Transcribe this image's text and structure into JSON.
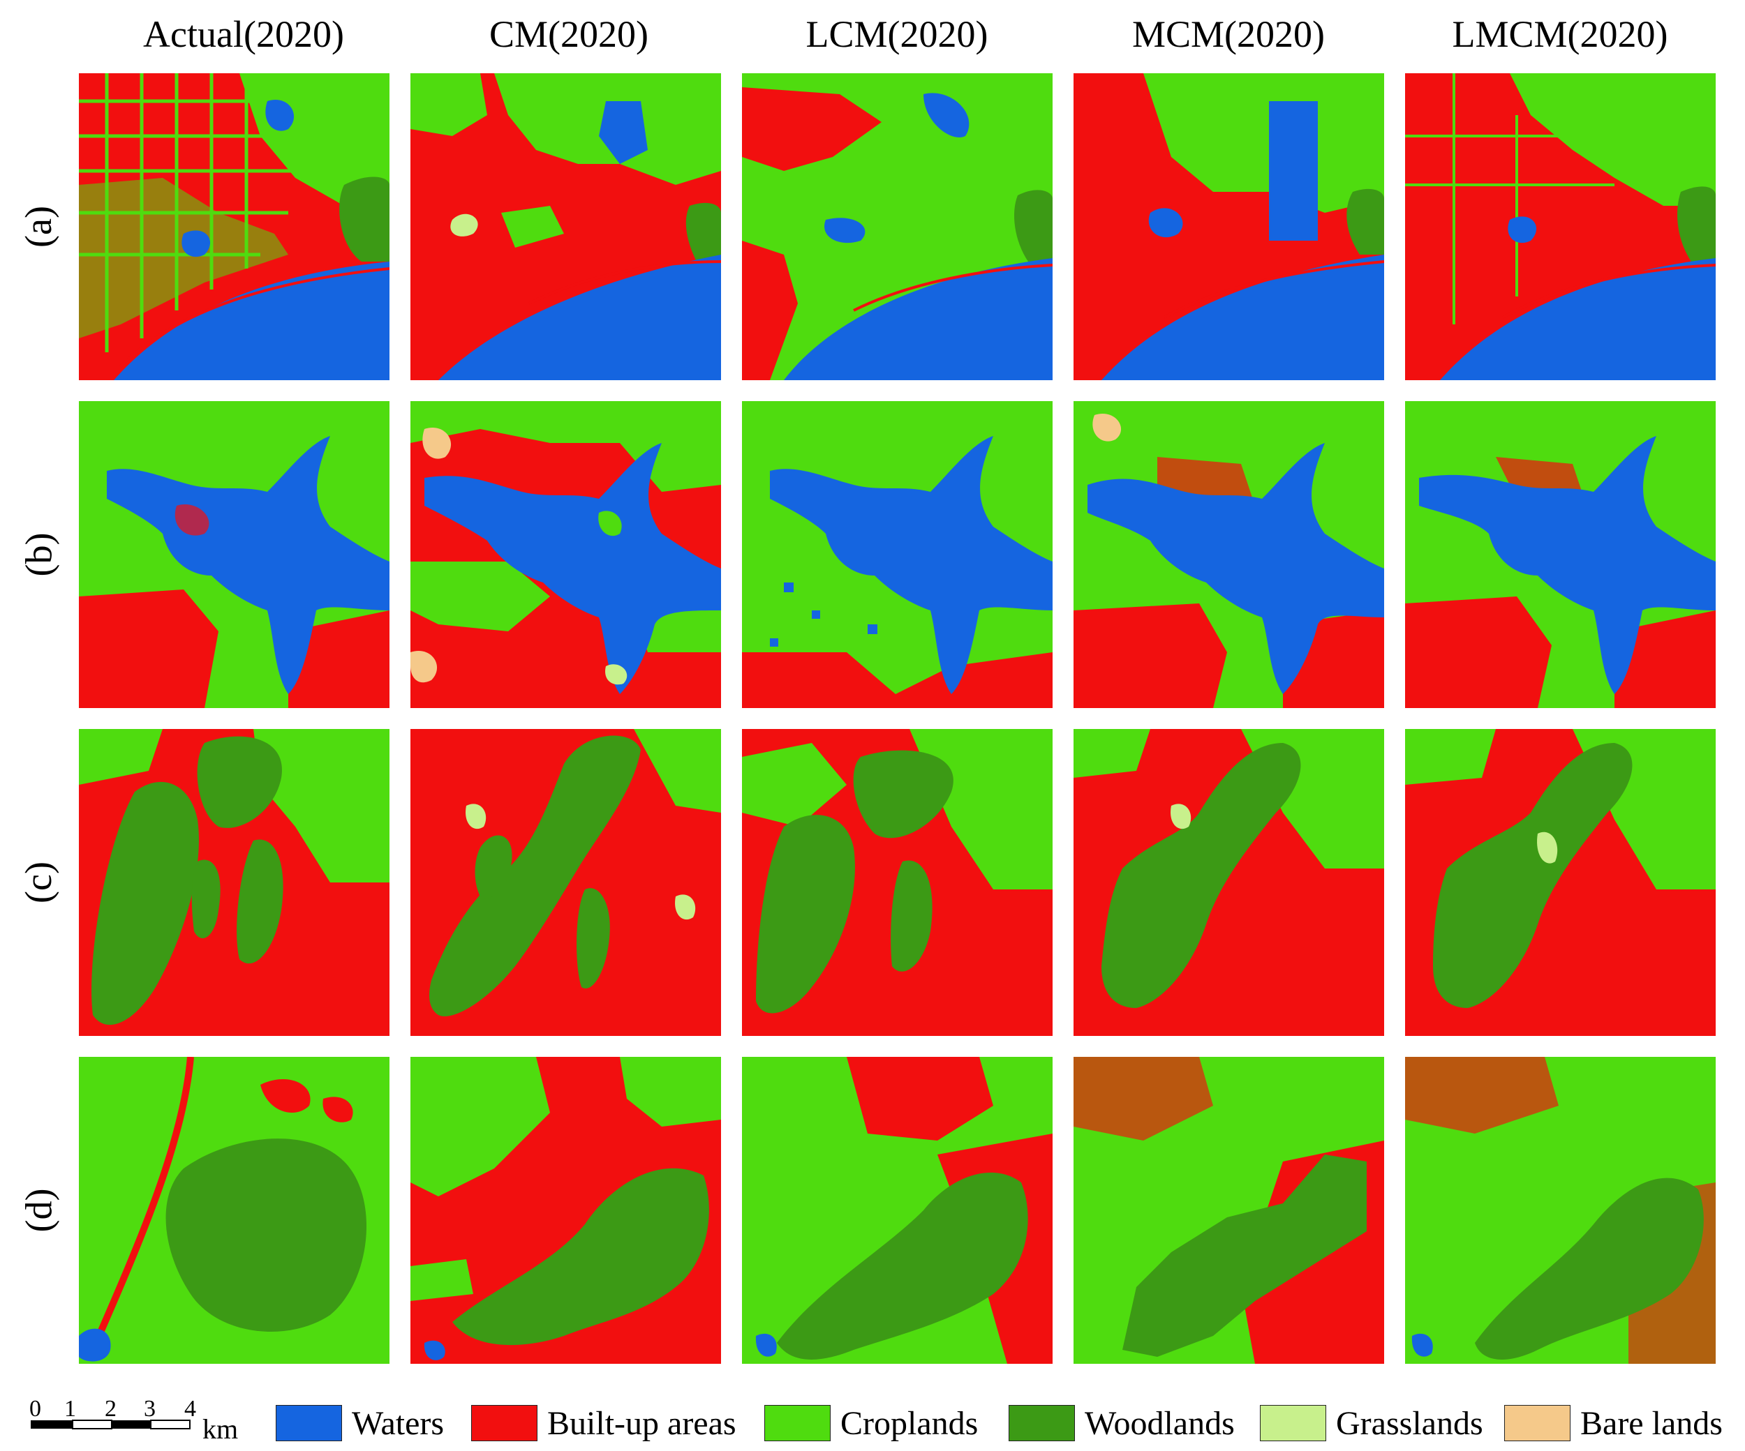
{
  "columns": [
    "Actual(2020)",
    "CM(2020)",
    "LCM(2020)",
    "MCM(2020)",
    "LMCM(2020)"
  ],
  "rows": [
    "(a)",
    "(b)",
    "(c)",
    "(d)"
  ],
  "scalebar": {
    "ticks": [
      "0",
      "1",
      "2",
      "3",
      "4"
    ],
    "unit": "km"
  },
  "legend": [
    {
      "label": "Waters",
      "color": "#1565e0"
    },
    {
      "label": "Built-up areas",
      "color": "#f20f0f"
    },
    {
      "label": "Croplands",
      "color": "#4fdc0f"
    },
    {
      "label": "Woodlands",
      "color": "#3c9a15"
    },
    {
      "label": "Grasslands",
      "color": "#c8f08c"
    },
    {
      "label": "Bare lands",
      "color": "#f5c98a"
    }
  ]
}
